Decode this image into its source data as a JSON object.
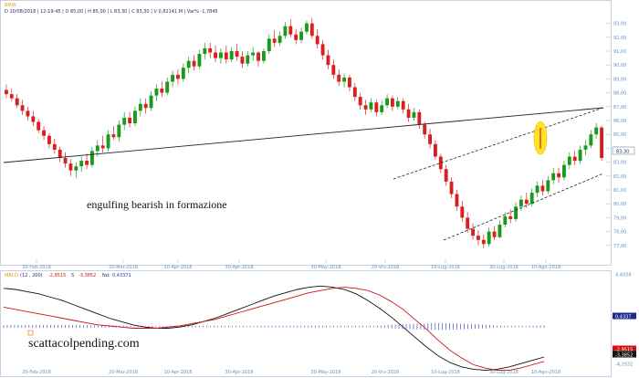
{
  "header": {
    "symbol": "BMW",
    "legend": "D 10/08/2018 | 12:19:45 | O 85,00 | H 85,00 | L 83,30 | C 83,30 | V 0,82141 M | Var% -1,7845"
  },
  "price_panel": {
    "y_ticks": [
      "93,00",
      "92,00",
      "91,00",
      "90,00",
      "89,00",
      "88,00",
      "87,00",
      "86,00",
      "85,00",
      "84,00",
      "83,00",
      "82,00",
      "81,00",
      "80,00",
      "79,00",
      "78,00",
      "77,00"
    ],
    "current_price_label": "83,30",
    "x_ticks": [
      "20-Feb-2018",
      "20-Mar-2018",
      "10-Apr-2018",
      "30-Apr-2018",
      "30-May-2018",
      "20-Vrs-2018",
      "10-Lug-2018",
      "30-Lug-2018",
      "10-Ago-2018"
    ],
    "annotation": "engulfing bearish in formazione"
  },
  "macd_panel": {
    "title": "MACD",
    "params": "(12 , 200)",
    "value_1": "-2,9515",
    "label_s": "S",
    "value_2": "-3,3852",
    "label_hist": "Nd:",
    "value_3": "0,43371",
    "y_ticks": [
      "4,4038",
      "0,4337",
      "-2,9515",
      "-3,3852",
      "-4,2932"
    ],
    "watermark": "scattacolpending.com",
    "x_ticks": [
      "20-Feb-2018",
      "20-Mar-2018",
      "10-Apr-2018",
      "30-Apr-2018",
      "30-May-2018",
      "20-Vrs-2018",
      "10-Lug-2018",
      "30-Lug-2018",
      "10-Ago-2018"
    ]
  },
  "colors": {
    "up": "#1a9a1a",
    "down": "#d82020",
    "macd_line": "#111111",
    "signal_line": "#cc1111",
    "histogram": "#2233bb",
    "highlight": "#ffe000"
  },
  "chart_data": [
    {
      "type": "candlestick",
      "ylim": [
        76,
        93.5
      ],
      "x": [
        "20-Feb-2018",
        "20-Mar-2018",
        "10-Apr-2018",
        "30-Apr-2018",
        "30-May-2018",
        "20-Vrs-2018",
        "10-Lug-2018",
        "30-Lug-2018",
        "10-Ago-2018"
      ],
      "series": [
        {
          "name": "BMW",
          "values": [
            [
              88.2,
              88.6,
              87.6,
              87.9
            ],
            [
              87.9,
              88.3,
              87.4,
              87.6
            ],
            [
              87.6,
              87.9,
              86.9,
              87.1
            ],
            [
              87.1,
              87.5,
              86.4,
              86.7
            ],
            [
              86.7,
              87.0,
              86.0,
              86.3
            ],
            [
              86.3,
              86.7,
              85.6,
              85.9
            ],
            [
              85.9,
              86.1,
              85.1,
              85.3
            ],
            [
              85.3,
              85.6,
              84.6,
              84.9
            ],
            [
              84.9,
              85.1,
              84.0,
              84.3
            ],
            [
              84.3,
              84.7,
              83.6,
              83.9
            ],
            [
              83.9,
              84.1,
              83.0,
              83.3
            ],
            [
              83.3,
              83.7,
              82.6,
              82.9
            ],
            [
              82.9,
              83.2,
              82.0,
              82.4
            ],
            [
              82.4,
              83.0,
              81.9,
              82.7
            ],
            [
              82.7,
              83.4,
              82.3,
              83.1
            ],
            [
              83.1,
              83.6,
              82.5,
              82.8
            ],
            [
              82.8,
              84.1,
              82.6,
              83.8
            ],
            [
              83.8,
              84.6,
              83.4,
              84.2
            ],
            [
              84.2,
              84.9,
              83.7,
              84.0
            ],
            [
              84.0,
              85.3,
              83.8,
              85.0
            ],
            [
              85.0,
              85.6,
              84.6,
              84.8
            ],
            [
              84.8,
              86.0,
              84.5,
              85.7
            ],
            [
              85.7,
              86.6,
              85.3,
              86.2
            ],
            [
              86.2,
              86.6,
              85.5,
              85.8
            ],
            [
              85.8,
              87.0,
              85.6,
              86.7
            ],
            [
              86.7,
              87.6,
              86.3,
              87.2
            ],
            [
              87.2,
              87.6,
              86.5,
              86.9
            ],
            [
              86.9,
              88.1,
              86.7,
              87.8
            ],
            [
              87.8,
              88.6,
              87.4,
              88.3
            ],
            [
              88.3,
              88.8,
              87.7,
              88.0
            ],
            [
              88.0,
              89.1,
              87.8,
              88.8
            ],
            [
              88.8,
              89.6,
              88.4,
              89.3
            ],
            [
              89.3,
              89.7,
              88.6,
              89.0
            ],
            [
              89.0,
              90.1,
              88.8,
              89.8
            ],
            [
              89.8,
              90.6,
              89.4,
              90.3
            ],
            [
              90.3,
              90.7,
              89.6,
              89.9
            ],
            [
              89.9,
              91.1,
              89.7,
              90.8
            ],
            [
              90.8,
              91.6,
              90.4,
              91.2
            ],
            [
              91.2,
              91.6,
              90.5,
              90.9
            ],
            [
              90.9,
              91.4,
              90.2,
              90.5
            ],
            [
              90.5,
              91.2,
              90.1,
              90.9
            ],
            [
              90.9,
              91.4,
              90.1,
              90.4
            ],
            [
              90.4,
              91.3,
              90.2,
              91.0
            ],
            [
              91.0,
              91.5,
              90.3,
              90.6
            ],
            [
              90.6,
              91.0,
              89.8,
              90.1
            ],
            [
              90.1,
              91.0,
              89.9,
              90.7
            ],
            [
              90.7,
              91.3,
              90.3,
              90.9
            ],
            [
              90.9,
              91.0,
              89.9,
              90.3
            ],
            [
              90.3,
              91.2,
              90.1,
              91.0
            ],
            [
              91.0,
              92.2,
              90.8,
              91.9
            ],
            [
              91.9,
              92.5,
              91.3,
              91.6
            ],
            [
              91.6,
              92.4,
              91.4,
              92.1
            ],
            [
              92.1,
              93.1,
              91.9,
              92.8
            ],
            [
              92.8,
              93.3,
              92.0,
              92.2
            ],
            [
              92.2,
              92.6,
              91.5,
              91.8
            ],
            [
              91.8,
              92.7,
              91.6,
              92.4
            ],
            [
              92.4,
              93.2,
              92.2,
              93.0
            ],
            [
              93.0,
              93.4,
              91.9,
              92.1
            ],
            [
              92.1,
              92.6,
              91.2,
              91.5
            ],
            [
              91.5,
              91.8,
              90.4,
              90.7
            ],
            [
              90.7,
              91.1,
              89.7,
              90.0
            ],
            [
              90.0,
              90.4,
              89.0,
              89.3
            ],
            [
              89.3,
              89.7,
              88.5,
              88.8
            ],
            [
              88.8,
              89.4,
              88.4,
              89.1
            ],
            [
              89.1,
              89.3,
              88.1,
              88.4
            ],
            [
              88.4,
              88.7,
              87.4,
              87.7
            ],
            [
              87.7,
              88.0,
              86.8,
              87.1
            ],
            [
              87.1,
              87.5,
              86.4,
              86.8
            ],
            [
              86.8,
              87.6,
              86.6,
              87.3
            ],
            [
              87.3,
              87.5,
              86.3,
              86.6
            ],
            [
              86.6,
              87.4,
              86.4,
              87.1
            ],
            [
              87.1,
              87.9,
              86.9,
              87.6
            ],
            [
              87.6,
              87.8,
              86.7,
              87.0
            ],
            [
              87.0,
              87.7,
              86.8,
              87.4
            ],
            [
              87.4,
              87.6,
              86.5,
              86.8
            ],
            [
              86.8,
              87.2,
              85.9,
              86.2
            ],
            [
              86.2,
              86.9,
              86.0,
              86.6
            ],
            [
              86.6,
              86.8,
              85.4,
              85.7
            ],
            [
              85.7,
              85.9,
              84.7,
              85.0
            ],
            [
              85.0,
              85.4,
              84.0,
              84.3
            ],
            [
              84.3,
              84.6,
              83.2,
              83.4
            ],
            [
              83.4,
              83.6,
              82.2,
              82.5
            ],
            [
              82.5,
              82.8,
              81.3,
              81.6
            ],
            [
              81.6,
              81.9,
              80.4,
              80.7
            ],
            [
              80.7,
              81.0,
              79.5,
              79.8
            ],
            [
              79.8,
              80.2,
              78.7,
              79.0
            ],
            [
              79.0,
              79.4,
              77.9,
              78.2
            ],
            [
              78.2,
              78.6,
              77.4,
              77.7
            ],
            [
              77.7,
              78.1,
              77.0,
              77.4
            ],
            [
              77.4,
              77.8,
              76.8,
              77.1
            ],
            [
              77.1,
              78.3,
              76.9,
              78.0
            ],
            [
              78.0,
              78.4,
              77.4,
              77.6
            ],
            [
              77.6,
              78.8,
              77.5,
              78.5
            ],
            [
              78.5,
              79.4,
              78.3,
              79.1
            ],
            [
              79.1,
              79.6,
              78.6,
              78.9
            ],
            [
              78.9,
              80.1,
              78.7,
              79.8
            ],
            [
              79.8,
              80.6,
              79.5,
              80.3
            ],
            [
              80.3,
              80.8,
              79.7,
              80.0
            ],
            [
              80.0,
              81.1,
              79.8,
              80.8
            ],
            [
              80.8,
              81.6,
              80.5,
              81.3
            ],
            [
              81.3,
              81.7,
              80.6,
              80.9
            ],
            [
              80.9,
              82.0,
              80.7,
              81.7
            ],
            [
              81.7,
              82.6,
              81.4,
              82.2
            ],
            [
              82.2,
              82.6,
              81.5,
              81.9
            ],
            [
              81.9,
              83.1,
              81.7,
              82.8
            ],
            [
              82.8,
              83.7,
              82.5,
              83.4
            ],
            [
              83.4,
              83.8,
              82.8,
              83.1
            ],
            [
              83.1,
              84.2,
              82.9,
              83.9
            ],
            [
              83.9,
              84.6,
              83.5,
              84.2
            ],
            [
              84.2,
              85.3,
              84.0,
              85.0
            ],
            [
              85.0,
              85.8,
              84.7,
              85.5
            ],
            [
              85.5,
              85.6,
              83.1,
              83.3
            ]
          ]
        }
      ]
    },
    {
      "type": "line",
      "ylim": [
        -4.4,
        4.5
      ],
      "series": [
        {
          "name": "MACD",
          "values": [
            3.2,
            3.1,
            2.9,
            2.7,
            2.4,
            2.1,
            1.7,
            1.3,
            0.9,
            0.5,
            0.2,
            -0.1,
            -0.3,
            -0.4,
            -0.4,
            -0.3,
            -0.1,
            0.2,
            0.5,
            0.9,
            1.3,
            1.7,
            2.1,
            2.5,
            2.8,
            3.1,
            3.3,
            3.4,
            3.3,
            3.1,
            2.7,
            2.1,
            1.4,
            0.6,
            -0.3,
            -1.2,
            -2.1,
            -2.9,
            -3.5,
            -3.9,
            -4.1,
            -4.2,
            -4.1,
            -3.9,
            -3.6,
            -3.3,
            -3.0
          ]
        },
        {
          "name": "Signal",
          "values": [
            1.5,
            1.3,
            1.1,
            0.9,
            0.7,
            0.5,
            0.3,
            0.1,
            -0.1,
            -0.2,
            -0.3,
            -0.4,
            -0.4,
            -0.4,
            -0.3,
            -0.2,
            0.0,
            0.2,
            0.4,
            0.7,
            1.0,
            1.3,
            1.6,
            1.9,
            2.2,
            2.5,
            2.8,
            3.0,
            3.2,
            3.3,
            3.2,
            3.0,
            2.6,
            2.0,
            1.3,
            0.4,
            -0.5,
            -1.5,
            -2.4,
            -3.1,
            -3.7,
            -4.0,
            -4.2,
            -4.2,
            -4.0,
            -3.7,
            -3.4
          ]
        },
        {
          "name": "Histogram",
          "values": [
            0.3,
            0.3,
            0.3,
            0.3,
            0.3,
            0.3,
            0.3,
            0.3,
            0.2,
            0.2,
            0.2,
            0.1,
            0.1,
            0.0,
            0.0,
            0.0,
            0.0,
            0.0,
            0.0,
            0.1,
            0.1,
            0.1,
            0.2,
            0.2,
            0.2,
            0.2,
            0.2,
            0.2,
            0.1,
            0.1,
            0.0,
            -0.1,
            -0.2,
            -0.4,
            -0.5,
            -0.6,
            -0.7,
            -0.8,
            -0.7,
            -0.6,
            -0.5,
            -0.4,
            -0.2,
            -0.1,
            0.1,
            0.2,
            0.3
          ]
        }
      ]
    }
  ]
}
